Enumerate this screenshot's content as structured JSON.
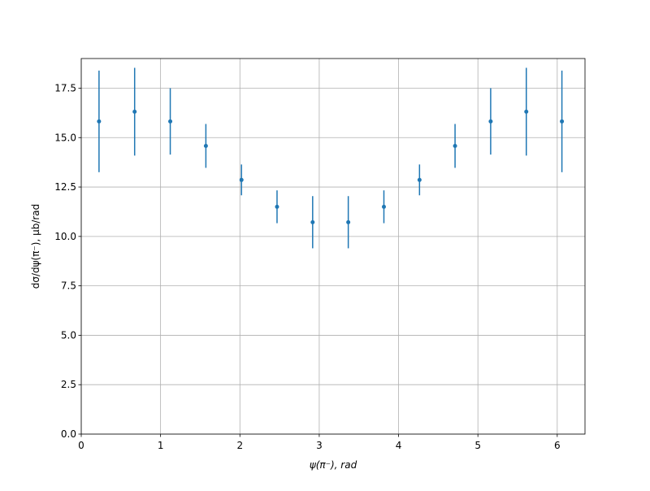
{
  "chart_data": {
    "type": "errorbar",
    "xlabel": "ψ(π⁻), rad",
    "ylabel": "dσ/dψ(π⁻), μb/rad",
    "x": [
      0.224,
      0.673,
      1.122,
      1.571,
      2.02,
      2.468,
      2.917,
      3.366,
      3.815,
      4.264,
      4.712,
      5.161,
      5.61,
      6.059
    ],
    "series": [
      {
        "color": "#1f77b4",
        "values": [
          15.82,
          16.31,
          15.82,
          14.58,
          12.86,
          11.5,
          10.72,
          10.72,
          11.5,
          12.86,
          14.58,
          15.82,
          16.31,
          15.82
        ],
        "errors": [
          2.57,
          2.22,
          1.68,
          1.11,
          0.78,
          0.83,
          1.32,
          1.32,
          0.83,
          0.78,
          1.11,
          1.68,
          2.22,
          2.57
        ]
      }
    ],
    "xlim": [
      0,
      6.35
    ],
    "ylim": [
      0,
      19
    ],
    "xticks": [
      0,
      1,
      2,
      3,
      4,
      5,
      6
    ],
    "yticks": [
      {
        "value": 0,
        "label": "0.0"
      },
      2.5,
      {
        "value": 5,
        "label": "5.0"
      },
      7.5,
      {
        "value": 10,
        "label": "10.0"
      },
      12.5,
      {
        "value": 15,
        "label": "15.0"
      },
      17.5
    ],
    "grid": true
  }
}
